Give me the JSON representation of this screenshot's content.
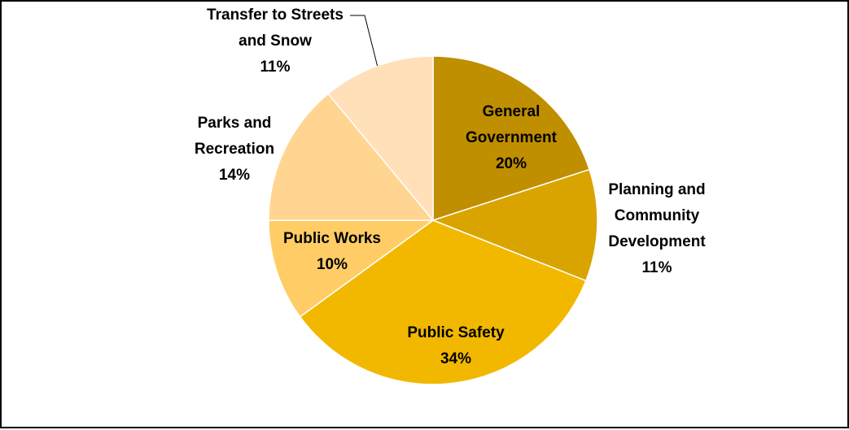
{
  "chart_data": {
    "type": "pie",
    "title": "",
    "start_angle_deg": 0,
    "direction": "clockwise",
    "legend": "none",
    "slices": [
      {
        "name": "General Government",
        "label_lines": [
          "General",
          "Government"
        ],
        "percent_label": "20%",
        "value": 20,
        "color": "#BF8F00",
        "label_inside": true
      },
      {
        "name": "Planning and Community Development",
        "label_lines": [
          "Planning and",
          "Community",
          "Development"
        ],
        "percent_label": "11%",
        "value": 11,
        "color": "#D9A400",
        "label_inside": false
      },
      {
        "name": "Public Safety",
        "label_lines": [
          "Public Safety"
        ],
        "percent_label": "34%",
        "value": 34,
        "color": "#F2B800",
        "label_inside": true
      },
      {
        "name": "Public Works",
        "label_lines": [
          "Public Works"
        ],
        "percent_label": "10%",
        "value": 10,
        "color": "#FFCC66",
        "label_inside": true
      },
      {
        "name": "Parks and Recreation",
        "label_lines": [
          "Parks and",
          "Recreation"
        ],
        "percent_label": "14%",
        "value": 14,
        "color": "#FFD591",
        "label_inside": false
      },
      {
        "name": "Transfer to Streets and Snow",
        "label_lines": [
          "Transfer to Streets",
          "and Snow"
        ],
        "percent_label": "11%",
        "value": 11,
        "color": "#FFE0B8",
        "label_inside": false,
        "leader_line": true
      }
    ]
  },
  "colors": {
    "background": "#FFFFFF",
    "border": "#000000",
    "slice_separator": "#FFFFFF",
    "label_text": "#000000"
  }
}
